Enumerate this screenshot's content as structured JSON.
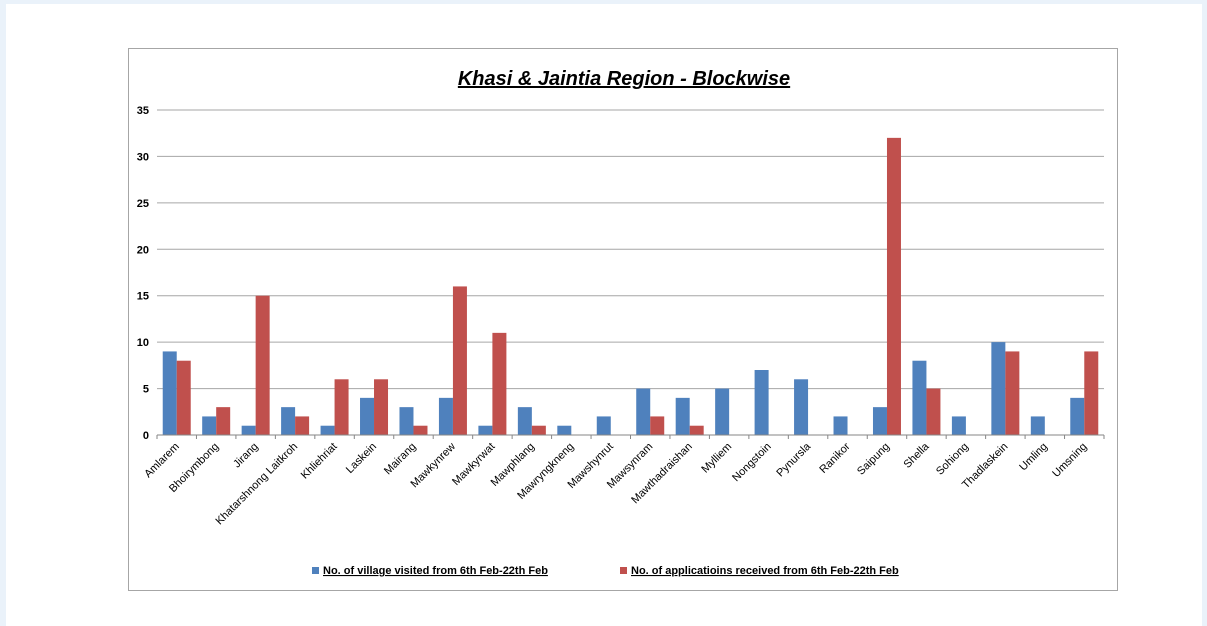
{
  "chart_data": {
    "type": "bar",
    "title": "Khasi & Jaintia Region - Blockwise",
    "xlabel": "",
    "ylabel": "",
    "ylim": [
      0,
      35
    ],
    "yticks": [
      "0",
      "5",
      "10",
      "15",
      "20",
      "25",
      "30",
      "35"
    ],
    "grid": true,
    "legend_position": "bottom",
    "categories": [
      "Amlarem",
      "Bhoirymbong",
      "Jirang",
      "Khatarshnong Laitkroh",
      "Khliehriat",
      "Laskein",
      "Mairang",
      "Mawkynrew",
      "Mawkyrwat",
      "Mawphlang",
      "Mawryngkneng",
      "Mawshynrut",
      "Mawsynram",
      "Mawthadraishan",
      "Mylliem",
      "Nongstoin",
      "Pynursla",
      "Ranikor",
      "Saipung",
      "Shella",
      "Sohiong",
      "Thadlaskein",
      "Umling",
      "Umsning"
    ],
    "series": [
      {
        "name": "No. of village visited from 6th Feb-22th Feb",
        "color": "#4f81bd",
        "values": [
          9,
          2,
          1,
          3,
          1,
          4,
          3,
          4,
          1,
          3,
          1,
          2,
          5,
          4,
          5,
          7,
          6,
          2,
          3,
          8,
          2,
          10,
          2,
          4
        ]
      },
      {
        "name": "No. of applicatioins received from 6th Feb-22th Feb",
        "color": "#c0504d",
        "values": [
          8,
          3,
          15,
          2,
          6,
          6,
          1,
          16,
          11,
          1,
          0,
          0,
          2,
          1,
          0,
          0,
          0,
          0,
          32,
          5,
          0,
          9,
          0,
          9
        ]
      }
    ]
  }
}
